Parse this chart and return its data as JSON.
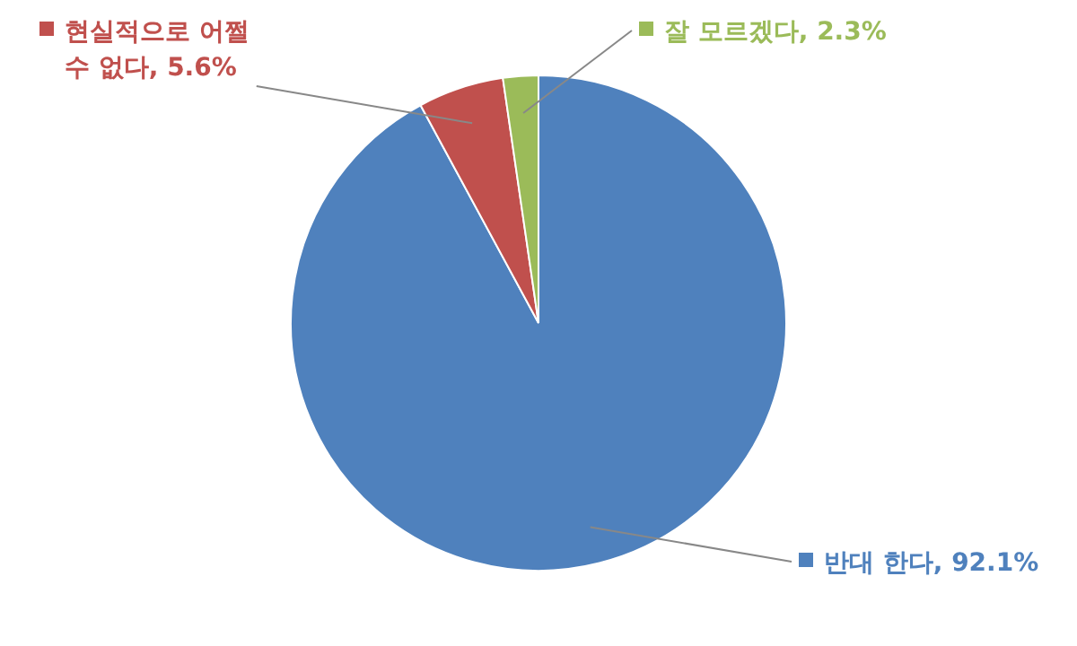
{
  "chart_data": {
    "type": "pie",
    "categories": [
      "반대 한다",
      "현실적으로 어쩔 수 없다",
      "잘 모르겠다"
    ],
    "values": [
      92.1,
      5.6,
      2.3
    ],
    "value_labels": [
      "92.1%",
      "5.6%",
      "2.3%"
    ],
    "colors": [
      "#4f81bd",
      "#c0504d",
      "#9bbb59"
    ],
    "legend": "top right"
  }
}
